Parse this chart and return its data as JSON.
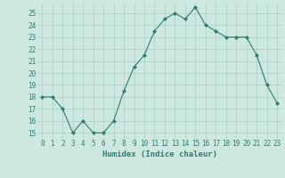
{
  "x": [
    0,
    1,
    2,
    3,
    4,
    5,
    6,
    7,
    8,
    9,
    10,
    11,
    12,
    13,
    14,
    15,
    16,
    17,
    18,
    19,
    20,
    21,
    22,
    23
  ],
  "y": [
    18,
    18,
    17,
    15,
    16,
    15,
    15,
    16,
    18.5,
    20.5,
    21.5,
    23.5,
    24.5,
    25,
    24.5,
    25.5,
    24,
    23.5,
    23,
    23,
    23,
    21.5,
    19,
    17.5
  ],
  "xlabel": "Humidex (Indice chaleur)",
  "xlim": [
    -0.5,
    23.5
  ],
  "ylim": [
    14.5,
    25.8
  ],
  "yticks": [
    15,
    16,
    17,
    18,
    19,
    20,
    21,
    22,
    23,
    24,
    25
  ],
  "xticks": [
    0,
    1,
    2,
    3,
    4,
    5,
    6,
    7,
    8,
    9,
    10,
    11,
    12,
    13,
    14,
    15,
    16,
    17,
    18,
    19,
    20,
    21,
    22,
    23
  ],
  "line_color": "#2e7d6e",
  "marker_color": "#2e7d6e",
  "bg_color": "#cce8e0",
  "grid_color": "#aacfc7",
  "text_color": "#2e7d6e",
  "label_fontsize": 6.5,
  "tick_fontsize": 5.5
}
